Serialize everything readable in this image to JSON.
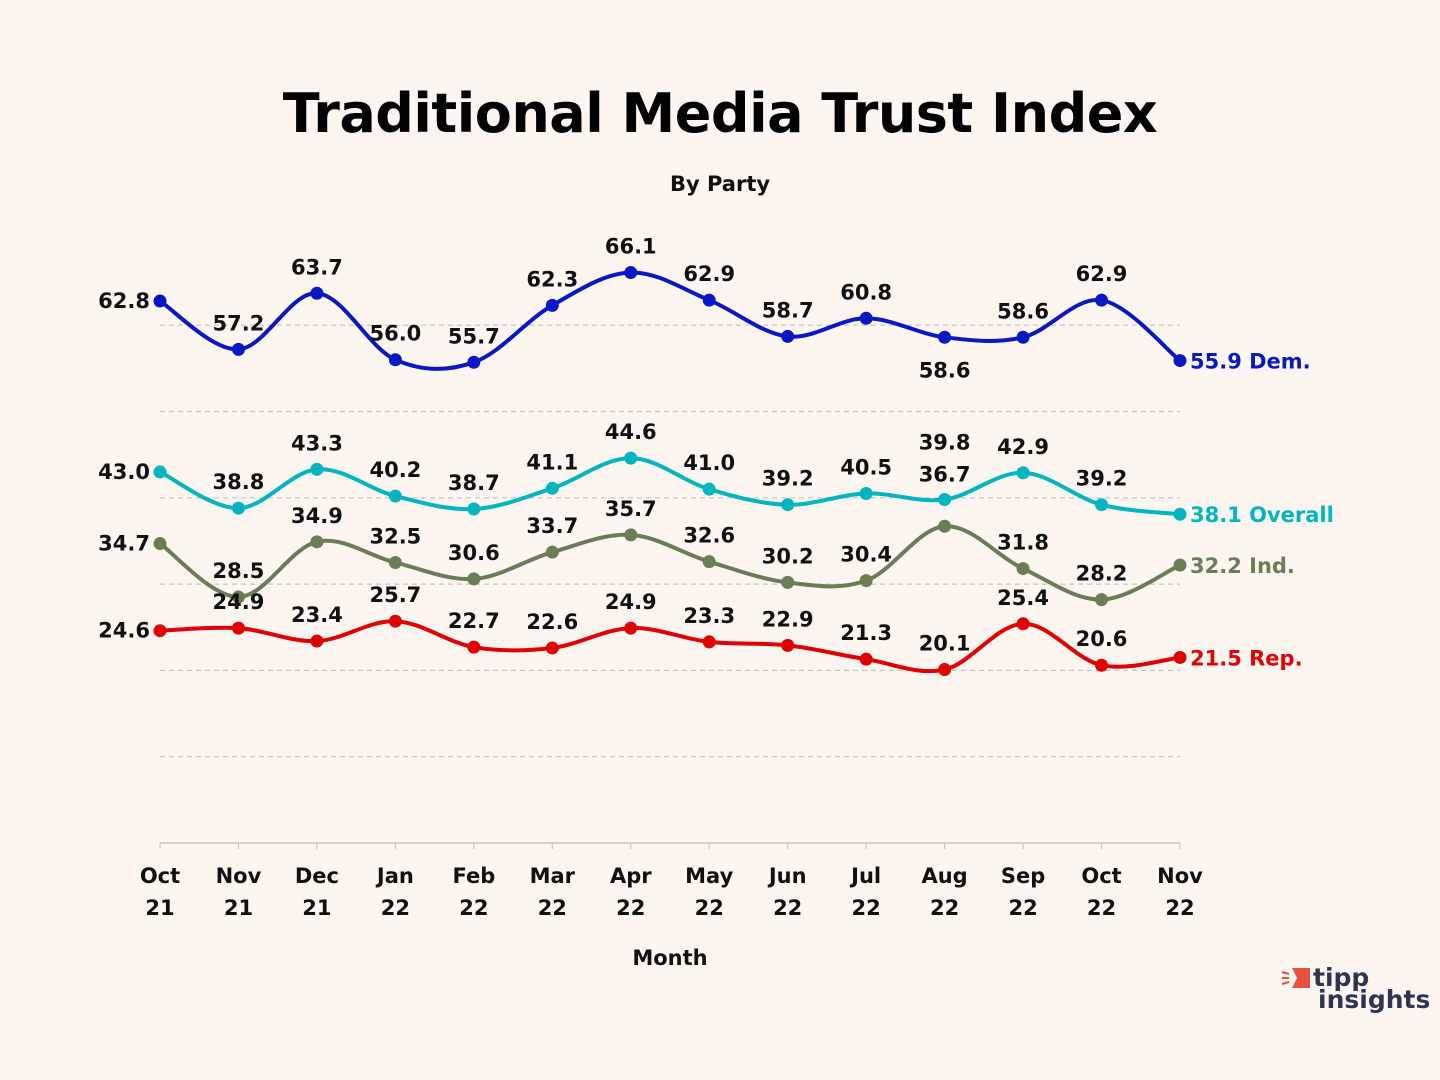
{
  "chart_data": {
    "type": "line",
    "title": "Traditional Media Trust Index",
    "subtitle": "By Party",
    "xlabel": "Month",
    "ylabel": "",
    "ylim": [
      0,
      70
    ],
    "grid": true,
    "categories": [
      [
        "Oct",
        "21"
      ],
      [
        "Nov",
        "21"
      ],
      [
        "Dec",
        "21"
      ],
      [
        "Jan",
        "22"
      ],
      [
        "Feb",
        "22"
      ],
      [
        "Mar",
        "22"
      ],
      [
        "Apr",
        "22"
      ],
      [
        "May",
        "22"
      ],
      [
        "Jun",
        "22"
      ],
      [
        "Jul",
        "22"
      ],
      [
        "Aug",
        "22"
      ],
      [
        "Sep",
        "22"
      ],
      [
        "Oct",
        "22"
      ],
      [
        "Nov",
        "22"
      ]
    ],
    "series": [
      {
        "name": "Dem.",
        "color": "#0a18c4",
        "values": [
          62.8,
          57.2,
          63.7,
          56.0,
          55.7,
          62.3,
          66.1,
          62.9,
          58.7,
          60.8,
          58.6,
          58.6,
          62.9,
          55.9
        ]
      },
      {
        "name": "Overall",
        "color": "#00b4c0",
        "values": [
          43.0,
          38.8,
          43.3,
          40.2,
          38.7,
          41.1,
          44.6,
          41.0,
          39.2,
          40.5,
          39.8,
          42.9,
          39.2,
          38.1
        ]
      },
      {
        "name": "Ind.",
        "color": "#6b7d55",
        "values": [
          34.7,
          28.5,
          34.9,
          32.5,
          30.6,
          33.7,
          35.7,
          32.6,
          30.2,
          30.4,
          36.7,
          31.8,
          28.2,
          32.2
        ]
      },
      {
        "name": "Rep.",
        "color": "#e00000",
        "values": [
          24.6,
          24.9,
          23.4,
          25.7,
          22.7,
          22.6,
          24.9,
          23.3,
          22.9,
          21.3,
          20.1,
          25.4,
          20.6,
          21.5
        ]
      }
    ]
  },
  "logo": {
    "line1": "tipp",
    "line2": "insights"
  }
}
